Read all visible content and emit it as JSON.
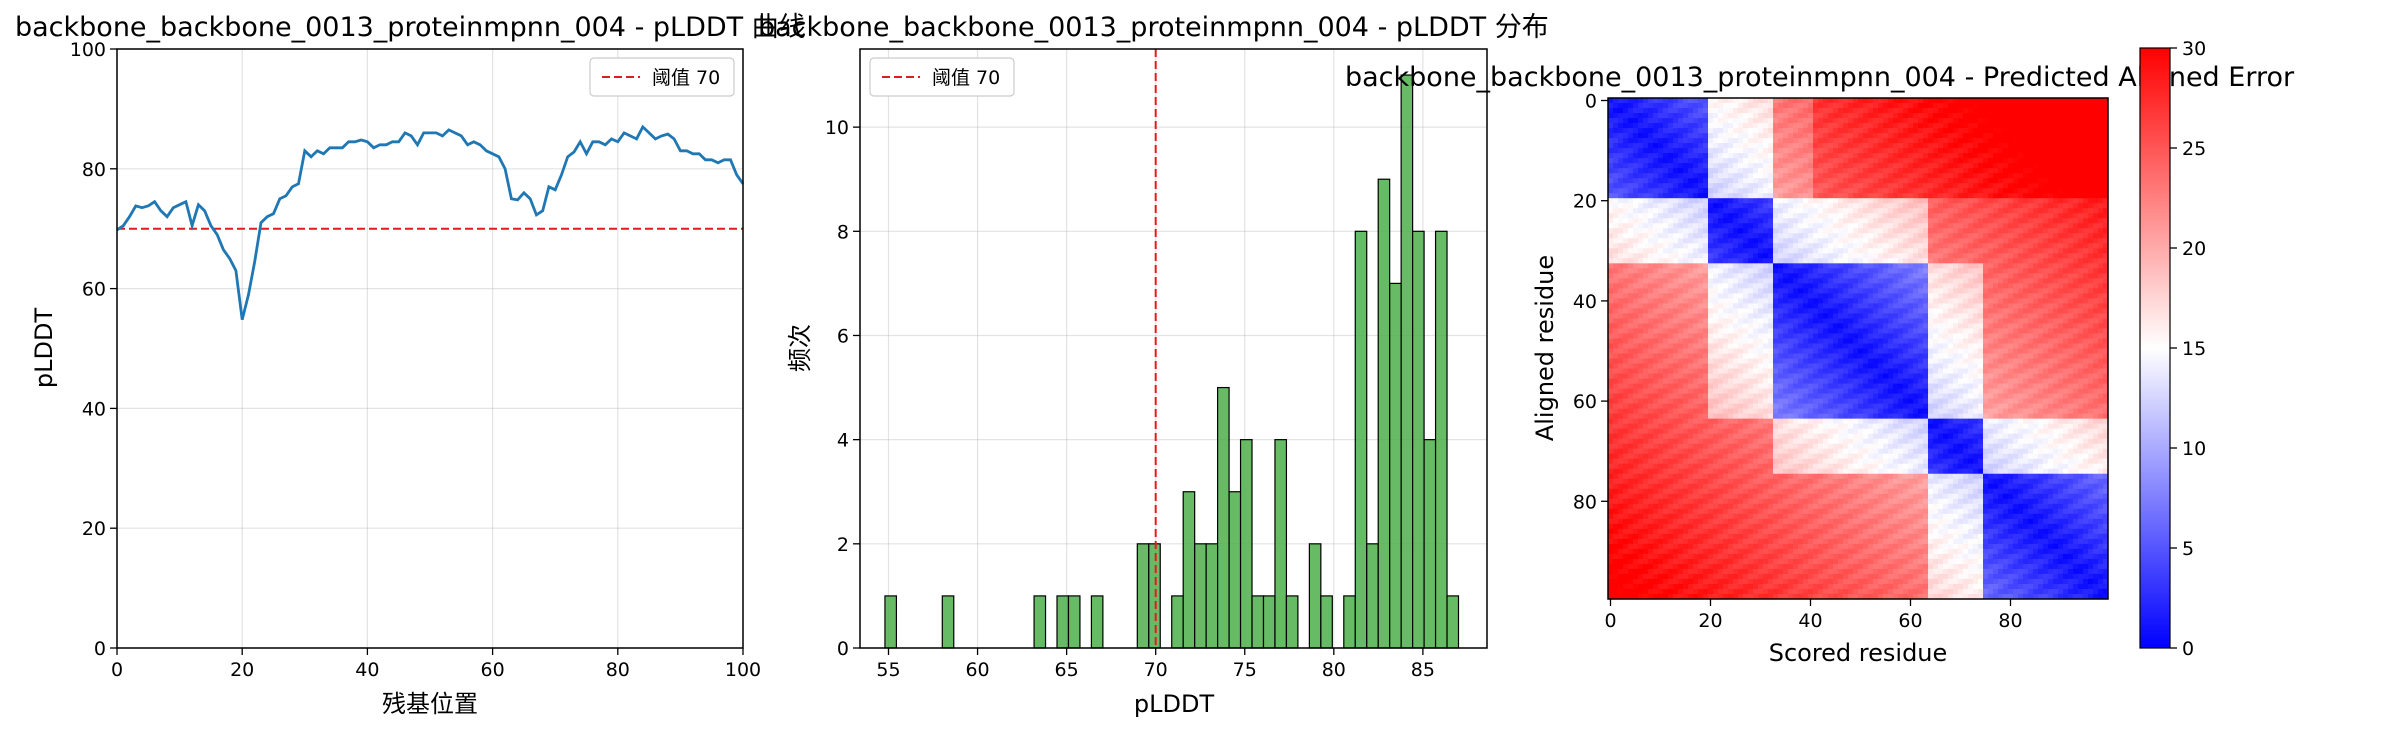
{
  "chart_data": [
    {
      "type": "line",
      "title": "backbone_backbone_0013_proteinmpnn_004 - pLDDT 曲线",
      "xlabel": "残基位置",
      "ylabel": "pLDDT",
      "xlim": [
        0,
        100
      ],
      "ylim": [
        0,
        100
      ],
      "xticks": [
        0,
        20,
        40,
        60,
        80,
        100
      ],
      "yticks": [
        0,
        20,
        40,
        60,
        80,
        100
      ],
      "grid": true,
      "legend_position": "top-right",
      "color": "#1f77b4",
      "threshold": {
        "value": 70,
        "label": "阈值 70",
        "color": "#e41a1c"
      },
      "series": [
        {
          "x": [
            0,
            1,
            2,
            3,
            4,
            5,
            6,
            7,
            8,
            9,
            10,
            11,
            12,
            13,
            14,
            15,
            16,
            17,
            18,
            19,
            20,
            21,
            22,
            23,
            24,
            25,
            26,
            27,
            28,
            29,
            30,
            31,
            32,
            33,
            34,
            35,
            36,
            37,
            38,
            39,
            40,
            41,
            42,
            43,
            44,
            45,
            46,
            47,
            48,
            49,
            50,
            51,
            52,
            53,
            54,
            55,
            56,
            57,
            58,
            59,
            60,
            61,
            62,
            63,
            64,
            65,
            66,
            67,
            68,
            69,
            70,
            71,
            72,
            73,
            74,
            75,
            76,
            77,
            78,
            79,
            80,
            81,
            82,
            83,
            84,
            85,
            86,
            87,
            88,
            89,
            90,
            91,
            92,
            93,
            94,
            95,
            96,
            97,
            98,
            99,
            100
          ],
          "y": [
            69.8,
            70.5,
            72,
            73.8,
            73.5,
            73.8,
            74.5,
            73,
            72,
            73.5,
            74,
            74.5,
            70.5,
            74,
            73,
            70.5,
            69,
            66.5,
            65,
            63,
            54.8,
            59,
            64.5,
            71,
            72,
            72.5,
            75,
            75.5,
            77,
            77.5,
            83,
            82,
            83,
            82.5,
            83.5,
            83.5,
            83.5,
            84.5,
            84.5,
            84.8,
            84.5,
            83.5,
            84,
            84,
            84.5,
            84.5,
            86,
            85.5,
            84,
            86,
            86,
            86,
            85.5,
            86.5,
            86,
            85.5,
            84,
            84.5,
            84,
            83,
            82.5,
            82,
            80,
            75,
            74.8,
            76,
            75,
            72.3,
            73,
            77,
            76.5,
            79,
            82,
            82.8,
            84.5,
            82.5,
            84.5,
            84.5,
            84,
            85,
            84.5,
            86,
            85.5,
            85,
            87,
            86,
            85,
            85.5,
            85.8,
            85,
            83,
            83,
            82.5,
            82.5,
            81.5,
            81.5,
            81,
            81.5,
            81.5,
            79,
            77.5
          ]
        }
      ]
    },
    {
      "type": "bar",
      "title": "backbone_backbone_0013_proteinmpnn_004 - pLDDT 分布",
      "xlabel": "pLDDT",
      "ylabel": "频次",
      "xlim": [
        53.4,
        88.6
      ],
      "ylim": [
        0,
        11.5
      ],
      "xticks": [
        55,
        60,
        65,
        70,
        75,
        80,
        85
      ],
      "yticks": [
        0,
        2,
        4,
        6,
        8,
        10
      ],
      "grid": true,
      "legend_position": "top-left",
      "color": "#4daf4a",
      "threshold": {
        "value": 70,
        "label": "阈值 70",
        "color": "#e41a1c"
      },
      "bin_start": 54.8,
      "bin_width": 0.644,
      "counts": [
        1,
        0,
        0,
        0,
        0,
        1,
        0,
        0,
        0,
        0,
        0,
        0,
        0,
        1,
        0,
        1,
        1,
        0,
        1,
        0,
        0,
        0,
        2,
        2,
        0,
        1,
        3,
        2,
        2,
        5,
        3,
        4,
        1,
        1,
        4,
        1,
        0,
        2,
        1,
        0,
        1,
        8,
        2,
        9,
        7,
        11,
        8,
        4,
        8,
        1
      ]
    },
    {
      "type": "heatmap",
      "title": "backbone_backbone_0013_proteinmpnn_004 - Predicted Aligned Error",
      "xlabel": "Scored residue",
      "ylabel": "Aligned residue",
      "size": 100,
      "xticks": [
        0,
        20,
        40,
        60,
        80
      ],
      "yticks": [
        0,
        20,
        40,
        60,
        80
      ],
      "colormap": "bwr",
      "vmin": 0,
      "vmax": 30,
      "colorbar_ticks": [
        0,
        5,
        10,
        15,
        20,
        25,
        30
      ],
      "domain_boundaries": [
        0,
        20,
        33,
        64,
        75,
        100
      ]
    }
  ]
}
